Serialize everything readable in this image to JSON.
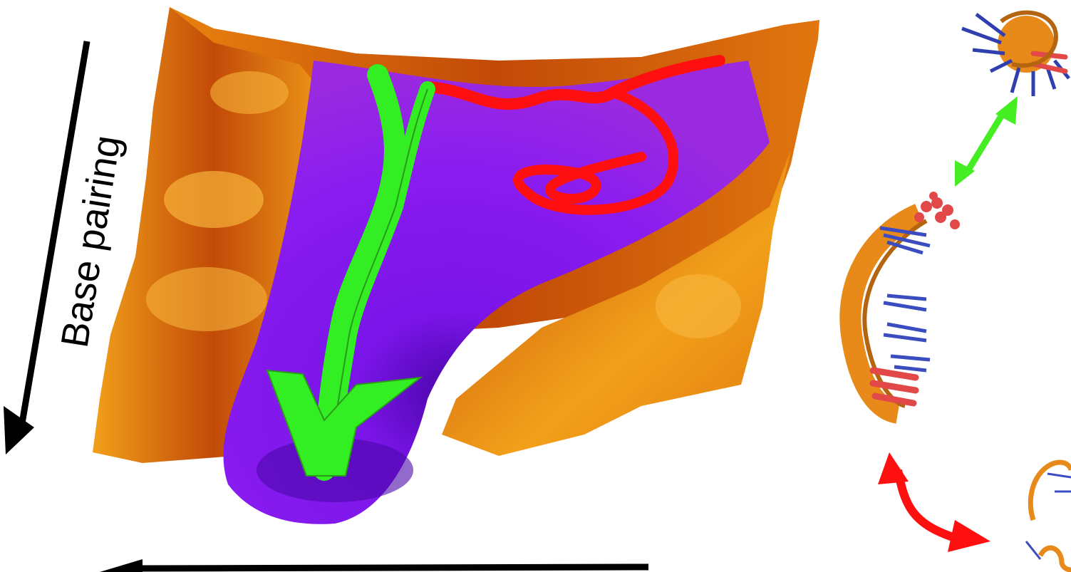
{
  "figure": {
    "axis_label_vertical": "Base pairing",
    "landscape": {
      "colors": {
        "ridge_light": "#f2a01a",
        "ridge_dark": "#c24a08",
        "basin_mid": "#8a1cf0",
        "basin_deep": "#4a06a8"
      }
    },
    "pathways": [
      {
        "name": "folding-pathway-green",
        "color": "#33ee22"
      },
      {
        "name": "misfolding-pathway-red",
        "color": "#ff1010"
      }
    ],
    "structures": [
      {
        "name": "structure-top",
        "state": "folded",
        "colors": {
          "backbone": "#e88a1a",
          "bases_a": "#2f3fb0",
          "bases_b": "#e24848"
        }
      },
      {
        "name": "structure-middle",
        "state": "hairpin",
        "colors": {
          "backbone": "#e88a1a",
          "bases_a": "#3a4cc0",
          "bases_b": "#e24848"
        }
      },
      {
        "name": "structure-bottom",
        "state": "unfolded",
        "colors": {
          "backbone": "#e88a1a",
          "bases_a": "#3a4cc0"
        }
      }
    ],
    "transition_arrows": [
      {
        "name": "green-double-arrow",
        "color": "#44ee22",
        "between": [
          "structure-middle",
          "structure-top"
        ]
      },
      {
        "name": "red-bent-arrow",
        "color": "#ff1010",
        "between": [
          "structure-middle",
          "structure-bottom"
        ]
      }
    ]
  }
}
